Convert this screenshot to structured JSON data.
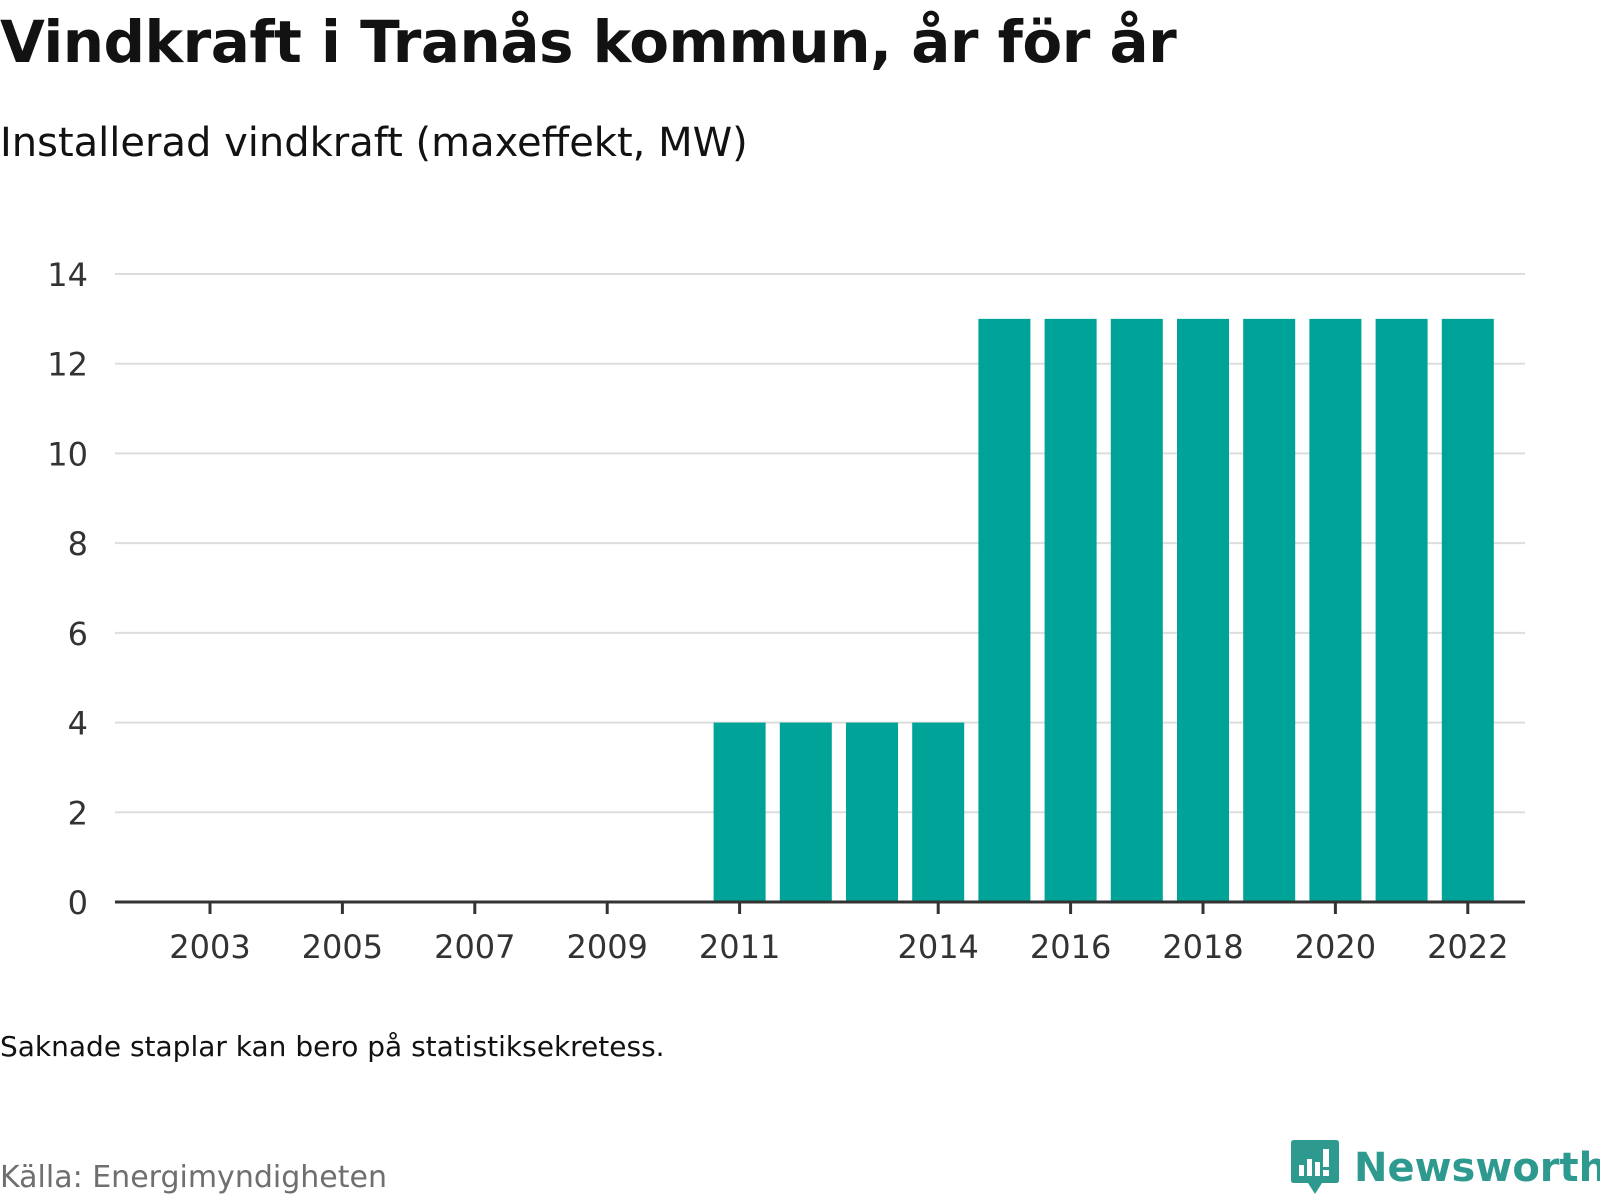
{
  "title": "Vindkraft i Tranås kommun, år för år",
  "subtitle": "Installerad vindkraft (maxeffekt, MW)",
  "note": "Saknade staplar kan bero på statistiksekretess.",
  "source": "Källa: Energimyndigheten",
  "brand": {
    "name": "Newsworthy",
    "color": "#2e9a8f",
    "icon": "newsworthy-logo-icon"
  },
  "chart_data": {
    "type": "bar",
    "title": "Vindkraft i Tranås kommun, år för år",
    "subtitle": "Installerad vindkraft (maxeffekt, MW)",
    "xlabel": "",
    "ylabel": "",
    "ylim": [
      0,
      14
    ],
    "yticks": [
      0,
      2,
      4,
      6,
      8,
      10,
      12,
      14
    ],
    "xticks": [
      "2003",
      "2005",
      "2007",
      "2009",
      "2011",
      "2014",
      "2016",
      "2018",
      "2020",
      "2022"
    ],
    "grid": true,
    "legend": "none",
    "bar_color": "#00a398",
    "categories": [
      "2003",
      "2004",
      "2005",
      "2006",
      "2007",
      "2008",
      "2009",
      "2010",
      "2011",
      "2012",
      "2013",
      "2014",
      "2015",
      "2016",
      "2017",
      "2018",
      "2019",
      "2020",
      "2021",
      "2022"
    ],
    "values": [
      null,
      null,
      null,
      null,
      null,
      null,
      null,
      null,
      4,
      4,
      4,
      4,
      13,
      13,
      13,
      13,
      13,
      13,
      13,
      13
    ]
  }
}
